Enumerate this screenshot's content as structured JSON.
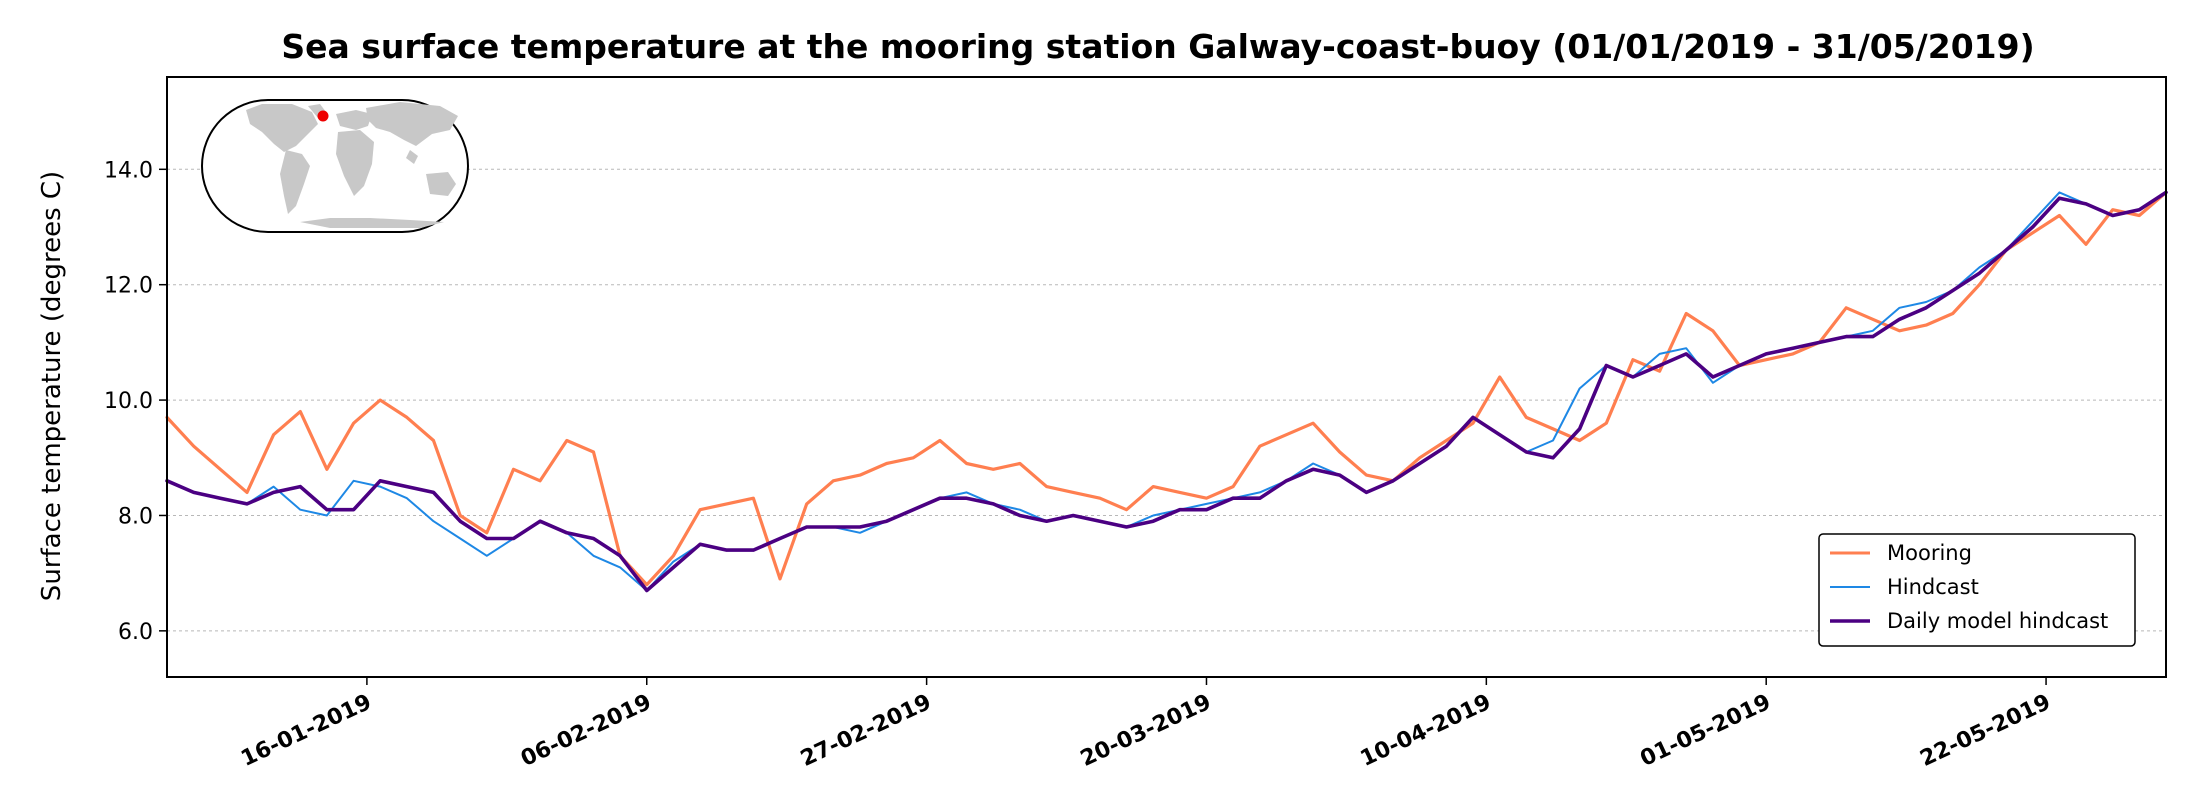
{
  "chart_data": {
    "type": "line",
    "title": "Sea surface temperature at the mooring station Galway-coast-buoy (01/01/2019 - 31/05/2019)",
    "xlabel": "",
    "ylabel": "Surface temperature (degrees C)",
    "xlim": [
      "2019-01-01",
      "2019-05-31"
    ],
    "ylim": [
      5.2,
      15.6
    ],
    "yticks": [
      6.0,
      8.0,
      10.0,
      12.0,
      14.0
    ],
    "ytick_labels": [
      "6.0",
      "8.0",
      "10.0",
      "12.0",
      "14.0"
    ],
    "xticks": [
      "2019-01-16",
      "2019-02-06",
      "2019-02-27",
      "2019-03-20",
      "2019-04-10",
      "2019-05-01",
      "2019-05-22"
    ],
    "xtick_labels": [
      "16-01-2019",
      "06-02-2019",
      "27-02-2019",
      "20-03-2019",
      "10-04-2019",
      "01-05-2019",
      "22-05-2019"
    ],
    "grid": "horizontal dotted",
    "legend_position": "lower-right",
    "inset": "world-map",
    "station_marker_color": "#ee0000",
    "series": [
      {
        "name": "Mooring",
        "color": "#ff7f50",
        "x": [
          "2019-01-01",
          "2019-01-03",
          "2019-01-05",
          "2019-01-07",
          "2019-01-09",
          "2019-01-11",
          "2019-01-13",
          "2019-01-15",
          "2019-01-17",
          "2019-01-19",
          "2019-01-21",
          "2019-01-23",
          "2019-01-25",
          "2019-01-27",
          "2019-01-29",
          "2019-01-31",
          "2019-02-02",
          "2019-02-04",
          "2019-02-06",
          "2019-02-08",
          "2019-02-10",
          "2019-02-12",
          "2019-02-14",
          "2019-02-16",
          "2019-02-18",
          "2019-02-20",
          "2019-02-22",
          "2019-02-24",
          "2019-02-26",
          "2019-02-28",
          "2019-03-02",
          "2019-03-04",
          "2019-03-06",
          "2019-03-08",
          "2019-03-10",
          "2019-03-12",
          "2019-03-14",
          "2019-03-16",
          "2019-03-18",
          "2019-03-20",
          "2019-03-22",
          "2019-03-24",
          "2019-03-26",
          "2019-03-28",
          "2019-03-30",
          "2019-04-01",
          "2019-04-03",
          "2019-04-05",
          "2019-04-07",
          "2019-04-09",
          "2019-04-11",
          "2019-04-13",
          "2019-04-15",
          "2019-04-17",
          "2019-04-19",
          "2019-04-21",
          "2019-04-23",
          "2019-04-25",
          "2019-04-27",
          "2019-04-29",
          "2019-05-01",
          "2019-05-03",
          "2019-05-05",
          "2019-05-07",
          "2019-05-09",
          "2019-05-11",
          "2019-05-13",
          "2019-05-15",
          "2019-05-17",
          "2019-05-19",
          "2019-05-21",
          "2019-05-23",
          "2019-05-25",
          "2019-05-27",
          "2019-05-29",
          "2019-05-31"
        ],
        "y": [
          9.7,
          9.2,
          8.8,
          8.4,
          9.4,
          9.8,
          8.8,
          9.6,
          10.0,
          9.7,
          9.3,
          8.0,
          7.7,
          8.8,
          8.6,
          9.3,
          9.1,
          7.3,
          6.8,
          7.3,
          8.1,
          8.2,
          8.3,
          6.9,
          8.2,
          8.6,
          8.7,
          8.9,
          9.0,
          9.3,
          8.9,
          8.8,
          8.9,
          8.5,
          8.4,
          8.3,
          8.1,
          8.5,
          8.4,
          8.3,
          8.5,
          9.2,
          9.4,
          9.6,
          9.1,
          8.7,
          8.6,
          9.0,
          9.3,
          9.6,
          10.4,
          9.7,
          9.5,
          9.3,
          9.6,
          10.7,
          10.5,
          11.5,
          11.2,
          10.6,
          10.7,
          10.8,
          11.0,
          11.6,
          11.4,
          11.2,
          11.3,
          11.5,
          12.0,
          12.6,
          12.9,
          13.2,
          12.7,
          13.3,
          13.2,
          13.6
        ]
      },
      {
        "name": "Hindcast",
        "color": "#1e88e5",
        "x": [
          "2019-01-01",
          "2019-01-03",
          "2019-01-05",
          "2019-01-07",
          "2019-01-09",
          "2019-01-11",
          "2019-01-13",
          "2019-01-15",
          "2019-01-17",
          "2019-01-19",
          "2019-01-21",
          "2019-01-23",
          "2019-01-25",
          "2019-01-27",
          "2019-01-29",
          "2019-01-31",
          "2019-02-02",
          "2019-02-04",
          "2019-02-06",
          "2019-02-08",
          "2019-02-10",
          "2019-02-12",
          "2019-02-14",
          "2019-02-16",
          "2019-02-18",
          "2019-02-20",
          "2019-02-22",
          "2019-02-24",
          "2019-02-26",
          "2019-02-28",
          "2019-03-02",
          "2019-03-04",
          "2019-03-06",
          "2019-03-08",
          "2019-03-10",
          "2019-03-12",
          "2019-03-14",
          "2019-03-16",
          "2019-03-18",
          "2019-03-20",
          "2019-03-22",
          "2019-03-24",
          "2019-03-26",
          "2019-03-28",
          "2019-03-30",
          "2019-04-01",
          "2019-04-03",
          "2019-04-05",
          "2019-04-07",
          "2019-04-09",
          "2019-04-11",
          "2019-04-13",
          "2019-04-15",
          "2019-04-17",
          "2019-04-19",
          "2019-04-21",
          "2019-04-23",
          "2019-04-25",
          "2019-04-27",
          "2019-04-29",
          "2019-05-01",
          "2019-05-03",
          "2019-05-05",
          "2019-05-07",
          "2019-05-09",
          "2019-05-11",
          "2019-05-13",
          "2019-05-15",
          "2019-05-17",
          "2019-05-19",
          "2019-05-21",
          "2019-05-23",
          "2019-05-25",
          "2019-05-27",
          "2019-05-29",
          "2019-05-31"
        ],
        "y": [
          8.6,
          8.4,
          8.3,
          8.2,
          8.5,
          8.1,
          8.0,
          8.6,
          8.5,
          8.3,
          7.9,
          7.6,
          7.3,
          7.6,
          7.9,
          7.7,
          7.3,
          7.1,
          6.7,
          7.2,
          7.5,
          7.4,
          7.4,
          7.6,
          7.8,
          7.8,
          7.7,
          7.9,
          8.1,
          8.3,
          8.4,
          8.2,
          8.1,
          7.9,
          8.0,
          7.9,
          7.8,
          8.0,
          8.1,
          8.2,
          8.3,
          8.4,
          8.6,
          8.9,
          8.7,
          8.4,
          8.6,
          8.9,
          9.2,
          9.7,
          9.4,
          9.1,
          9.3,
          10.2,
          10.6,
          10.4,
          10.8,
          10.9,
          10.3,
          10.6,
          10.8,
          10.9,
          11.0,
          11.1,
          11.2,
          11.6,
          11.7,
          11.9,
          12.3,
          12.6,
          13.1,
          13.6,
          13.4,
          13.2,
          13.3,
          13.6
        ]
      },
      {
        "name": "Daily model hindcast",
        "color": "#4b0082",
        "x": [
          "2019-01-01",
          "2019-01-03",
          "2019-01-05",
          "2019-01-07",
          "2019-01-09",
          "2019-01-11",
          "2019-01-13",
          "2019-01-15",
          "2019-01-17",
          "2019-01-19",
          "2019-01-21",
          "2019-01-23",
          "2019-01-25",
          "2019-01-27",
          "2019-01-29",
          "2019-01-31",
          "2019-02-02",
          "2019-02-04",
          "2019-02-06",
          "2019-02-08",
          "2019-02-10",
          "2019-02-12",
          "2019-02-14",
          "2019-02-16",
          "2019-02-18",
          "2019-02-20",
          "2019-02-22",
          "2019-02-24",
          "2019-02-26",
          "2019-02-28",
          "2019-03-02",
          "2019-03-04",
          "2019-03-06",
          "2019-03-08",
          "2019-03-10",
          "2019-03-12",
          "2019-03-14",
          "2019-03-16",
          "2019-03-18",
          "2019-03-20",
          "2019-03-22",
          "2019-03-24",
          "2019-03-26",
          "2019-03-28",
          "2019-03-30",
          "2019-04-01",
          "2019-04-03",
          "2019-04-05",
          "2019-04-07",
          "2019-04-09",
          "2019-04-11",
          "2019-04-13",
          "2019-04-15",
          "2019-04-17",
          "2019-04-19",
          "2019-04-21",
          "2019-04-23",
          "2019-04-25",
          "2019-04-27",
          "2019-04-29",
          "2019-05-01",
          "2019-05-03",
          "2019-05-05",
          "2019-05-07",
          "2019-05-09",
          "2019-05-11",
          "2019-05-13",
          "2019-05-15",
          "2019-05-17",
          "2019-05-19",
          "2019-05-21",
          "2019-05-23",
          "2019-05-25",
          "2019-05-27",
          "2019-05-29",
          "2019-05-31"
        ],
        "y": [
          8.6,
          8.4,
          8.3,
          8.2,
          8.4,
          8.5,
          8.1,
          8.1,
          8.6,
          8.5,
          8.4,
          7.9,
          7.6,
          7.6,
          7.9,
          7.7,
          7.6,
          7.3,
          6.7,
          7.1,
          7.5,
          7.4,
          7.4,
          7.6,
          7.8,
          7.8,
          7.8,
          7.9,
          8.1,
          8.3,
          8.3,
          8.2,
          8.0,
          7.9,
          8.0,
          7.9,
          7.8,
          7.9,
          8.1,
          8.1,
          8.3,
          8.3,
          8.6,
          8.8,
          8.7,
          8.4,
          8.6,
          8.9,
          9.2,
          9.7,
          9.4,
          9.1,
          9.0,
          9.5,
          10.6,
          10.4,
          10.6,
          10.8,
          10.4,
          10.6,
          10.8,
          10.9,
          11.0,
          11.1,
          11.1,
          11.4,
          11.6,
          11.9,
          12.2,
          12.6,
          13.0,
          13.5,
          13.4,
          13.2,
          13.3,
          13.6
        ]
      }
    ]
  }
}
